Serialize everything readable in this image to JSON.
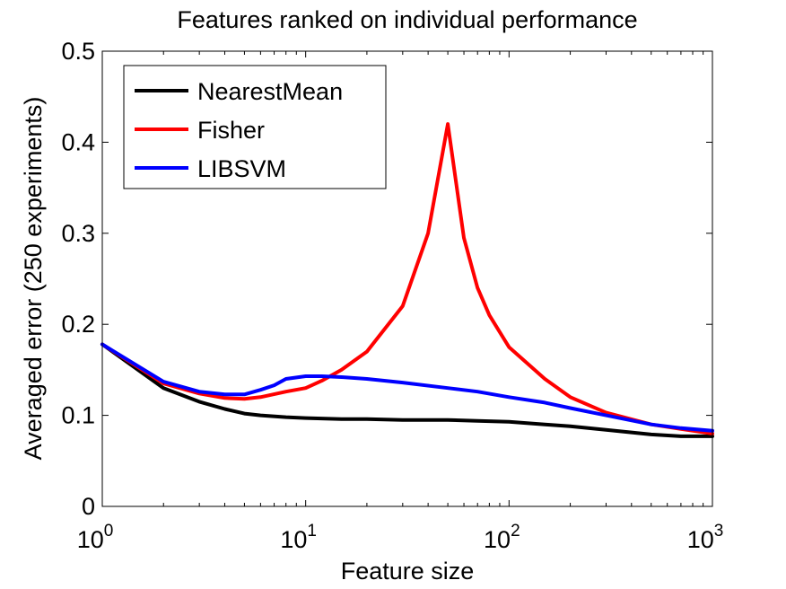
{
  "chart_data": {
    "type": "line",
    "title": "Features ranked on individual performance",
    "xlabel": "Feature size",
    "ylabel": "Averaged error (250 experiments)",
    "xscale": "log",
    "xlim": [
      1,
      1000
    ],
    "ylim": [
      0,
      0.5
    ],
    "xticks": [
      {
        "base": "10",
        "exp": "0"
      },
      {
        "base": "10",
        "exp": "1"
      },
      {
        "base": "10",
        "exp": "2"
      },
      {
        "base": "10",
        "exp": "3"
      }
    ],
    "yticks": [
      "0",
      "0.1",
      "0.2",
      "0.3",
      "0.4",
      "0.5"
    ],
    "grid": false,
    "legend_position": "top-left",
    "series": [
      {
        "name": "NearestMean",
        "color": "#000000",
        "x": [
          1,
          2,
          3,
          4,
          5,
          6,
          8,
          10,
          15,
          20,
          30,
          50,
          70,
          100,
          150,
          200,
          300,
          500,
          700,
          1000
        ],
        "y": [
          0.178,
          0.13,
          0.115,
          0.107,
          0.102,
          0.1,
          0.098,
          0.097,
          0.096,
          0.096,
          0.095,
          0.095,
          0.094,
          0.093,
          0.09,
          0.088,
          0.084,
          0.079,
          0.077,
          0.077
        ]
      },
      {
        "name": "Fisher",
        "color": "#ff0000",
        "x": [
          1,
          2,
          3,
          4,
          5,
          6,
          8,
          10,
          12,
          15,
          20,
          30,
          40,
          50,
          60,
          70,
          80,
          100,
          150,
          200,
          300,
          500,
          700,
          1000
        ],
        "y": [
          0.178,
          0.135,
          0.124,
          0.119,
          0.118,
          0.12,
          0.126,
          0.13,
          0.138,
          0.15,
          0.17,
          0.22,
          0.3,
          0.42,
          0.295,
          0.24,
          0.21,
          0.175,
          0.14,
          0.12,
          0.103,
          0.09,
          0.085,
          0.08
        ]
      },
      {
        "name": "LIBSVM",
        "color": "#0000ff",
        "x": [
          1,
          2,
          3,
          4,
          5,
          6,
          7,
          8,
          10,
          12,
          15,
          20,
          30,
          50,
          70,
          100,
          150,
          200,
          300,
          500,
          700,
          1000
        ],
        "y": [
          0.178,
          0.137,
          0.126,
          0.123,
          0.123,
          0.128,
          0.133,
          0.14,
          0.143,
          0.143,
          0.142,
          0.14,
          0.136,
          0.13,
          0.126,
          0.12,
          0.114,
          0.108,
          0.1,
          0.09,
          0.086,
          0.083
        ]
      }
    ]
  }
}
